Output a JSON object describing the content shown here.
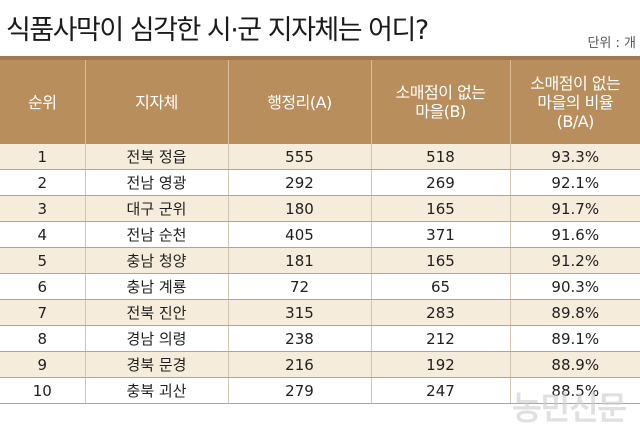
{
  "title": "식품사막이 심각한 시·군 지자체는 어디?",
  "unit_label": "단위 : 개",
  "watermark": "농민신문",
  "chart_data": {
    "type": "table",
    "title": "식품사막이 심각한 시·군 지자체는 어디?",
    "columns": [
      "순위",
      "지자체",
      "행정리(A)",
      "소매점이 없는\n마을(B)",
      "소매점이 없는\n마을의 비율\n(B/A)"
    ],
    "rows": [
      [
        "1",
        "전북 정읍",
        "555",
        "518",
        "93.3%"
      ],
      [
        "2",
        "전남 영광",
        "292",
        "269",
        "92.1%"
      ],
      [
        "3",
        "대구 군위",
        "180",
        "165",
        "91.7%"
      ],
      [
        "4",
        "전남 순천",
        "405",
        "371",
        "91.6%"
      ],
      [
        "5",
        "충남 청양",
        "181",
        "165",
        "91.2%"
      ],
      [
        "6",
        "충남 계룡",
        "72",
        "65",
        "90.3%"
      ],
      [
        "7",
        "전북 진안",
        "315",
        "283",
        "89.8%"
      ],
      [
        "8",
        "경남 의령",
        "238",
        "212",
        "89.1%"
      ],
      [
        "9",
        "경북 문경",
        "216",
        "192",
        "88.9%"
      ],
      [
        "10",
        "충북 괴산",
        "279",
        "247",
        "88.5%"
      ]
    ]
  },
  "colors": {
    "header": "#b88e5c",
    "row_stripe": "#f6ecdb",
    "top_rule": "#a07a4e"
  }
}
